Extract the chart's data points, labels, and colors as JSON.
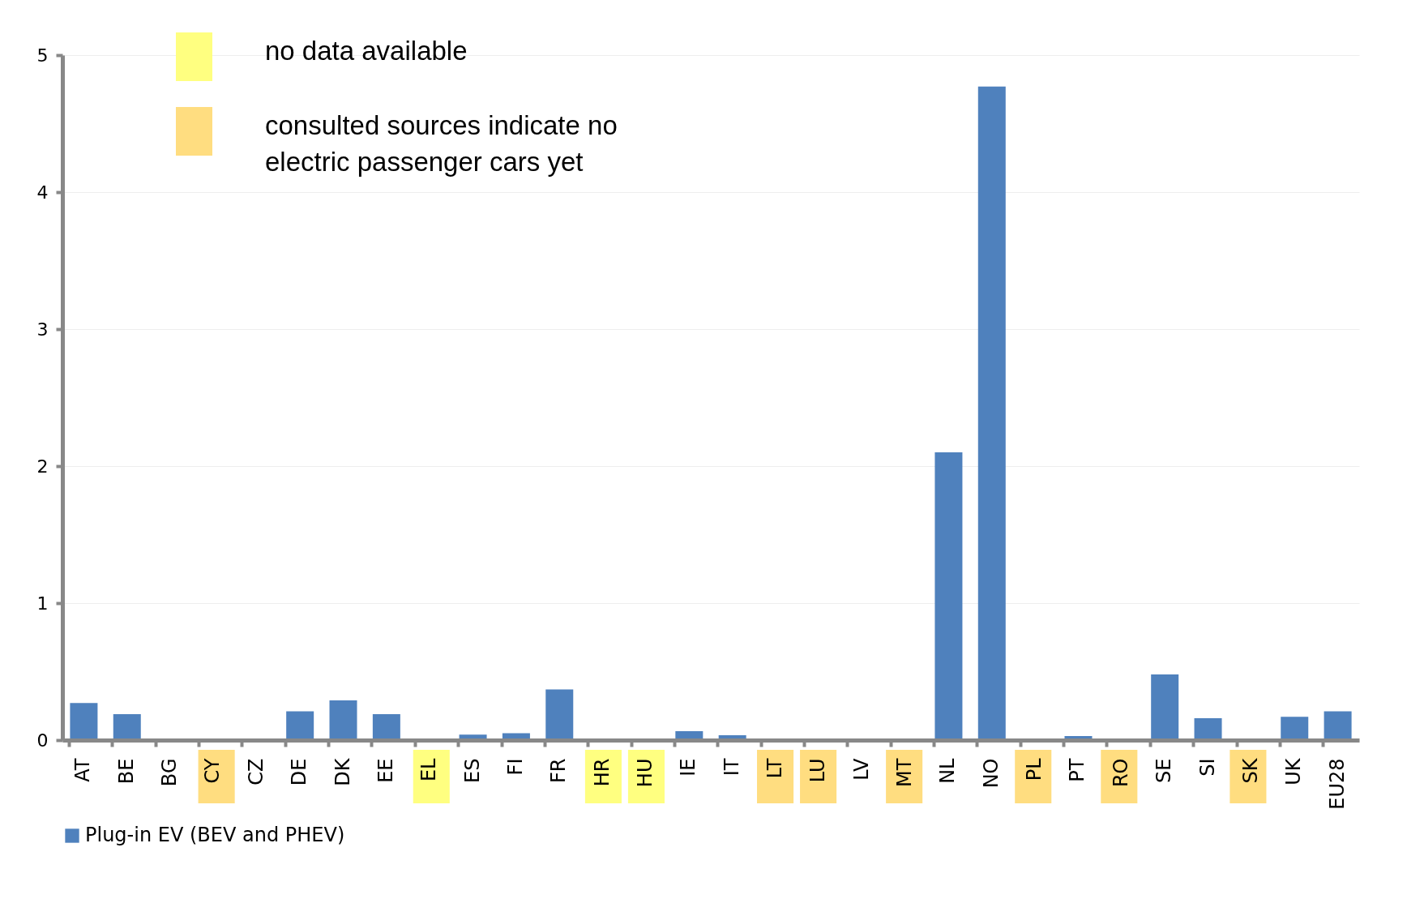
{
  "chart_data": {
    "type": "bar",
    "categories": [
      "AT",
      "BE",
      "BG",
      "CY",
      "CZ",
      "DE",
      "DK",
      "EE",
      "EL",
      "ES",
      "FI",
      "FR",
      "HR",
      "HU",
      "IE",
      "IT",
      "LT",
      "LU",
      "LV",
      "MT",
      "NL",
      "NO",
      "PL",
      "PT",
      "RO",
      "SE",
      "SI",
      "SK",
      "UK",
      "EU28"
    ],
    "series": [
      {
        "name": "Plug-in EV (BEV and PHEV)",
        "color": "#4f81bd",
        "values": [
          0.27,
          0.19,
          0,
          0,
          0,
          0.21,
          0.29,
          0.19,
          null,
          0.04,
          0.05,
          0.37,
          null,
          null,
          0.065,
          0.035,
          0,
          0,
          0,
          0,
          2.1,
          4.77,
          0,
          0.03,
          0,
          0.48,
          0.16,
          0,
          0.17,
          0.21
        ]
      },
      {
        "name": "no data available",
        "color": "#ffff80",
        "values": [
          null,
          null,
          null,
          null,
          null,
          null,
          null,
          null,
          null,
          null,
          null,
          null,
          null,
          null,
          null,
          null,
          null,
          null,
          null,
          null,
          null,
          null,
          null,
          null,
          null,
          null,
          null,
          null,
          null,
          null
        ]
      },
      {
        "name": "consulted sources indicate no\nelectric passenger cars yet",
        "color": "#ffdd80",
        "values": [
          null,
          null,
          null,
          null,
          null,
          null,
          null,
          null,
          null,
          null,
          null,
          null,
          null,
          null,
          null,
          null,
          null,
          null,
          null,
          null,
          null,
          null,
          null,
          null,
          null,
          null,
          null,
          null,
          null,
          null
        ]
      }
    ],
    "ylim": [
      0,
      5
    ],
    "yticks": [
      0,
      1,
      2,
      3,
      4,
      5
    ],
    "grid": "y",
    "legend": "bottom"
  }
}
